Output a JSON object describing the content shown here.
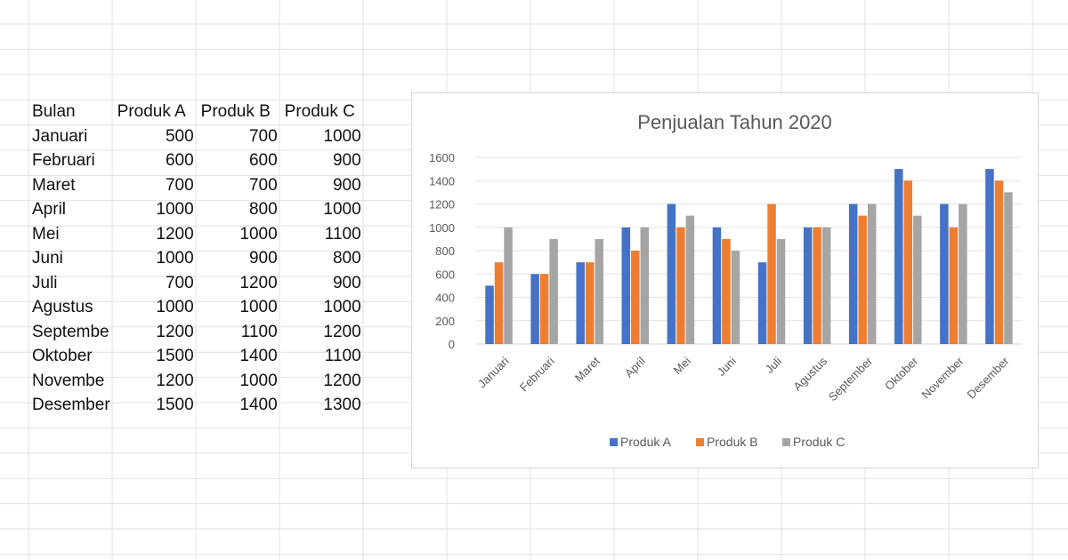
{
  "table": {
    "headers": [
      "Bulan",
      "Produk A",
      "Produk B",
      "Produk C"
    ],
    "rows": [
      [
        "Januari",
        "500",
        "700",
        "1000"
      ],
      [
        "Februari",
        "600",
        "600",
        "900"
      ],
      [
        "Maret",
        "700",
        "700",
        "900"
      ],
      [
        "April",
        "1000",
        "800",
        "1000"
      ],
      [
        "Mei",
        "1200",
        "1000",
        "1100"
      ],
      [
        "Juni",
        "1000",
        "900",
        "800"
      ],
      [
        "Juli",
        "700",
        "1200",
        "900"
      ],
      [
        "Agustus",
        "1000",
        "1000",
        "1000"
      ],
      [
        "Septembe",
        "1200",
        "1100",
        "1200"
      ],
      [
        "Oktober",
        "1500",
        "1400",
        "1100"
      ],
      [
        "Novembe",
        "1200",
        "1000",
        "1200"
      ],
      [
        "Desember",
        "1500",
        "1400",
        "1300"
      ]
    ]
  },
  "chart_data": {
    "type": "bar",
    "title": "Penjualan Tahun 2020",
    "categories": [
      "Januari",
      "Februari",
      "Maret",
      "April",
      "Mei",
      "Juni",
      "Juli",
      "Agustus",
      "September",
      "Oktober",
      "November",
      "Desember"
    ],
    "series": [
      {
        "name": "Produk A",
        "color": "#4472c4",
        "values": [
          500,
          600,
          700,
          1000,
          1200,
          1000,
          700,
          1000,
          1200,
          1500,
          1200,
          1500
        ]
      },
      {
        "name": "Produk B",
        "color": "#ed7d31",
        "values": [
          700,
          600,
          700,
          800,
          1000,
          900,
          1200,
          1000,
          1100,
          1400,
          1000,
          1400
        ]
      },
      {
        "name": "Produk C",
        "color": "#a5a5a5",
        "values": [
          1000,
          900,
          900,
          1000,
          1100,
          800,
          900,
          1000,
          1200,
          1100,
          1200,
          1300
        ]
      }
    ],
    "ylim": [
      0,
      1600
    ],
    "yticks": [
      0,
      200,
      400,
      600,
      800,
      1000,
      1200,
      1400,
      1600
    ],
    "grid": true,
    "legend": "bottom"
  }
}
